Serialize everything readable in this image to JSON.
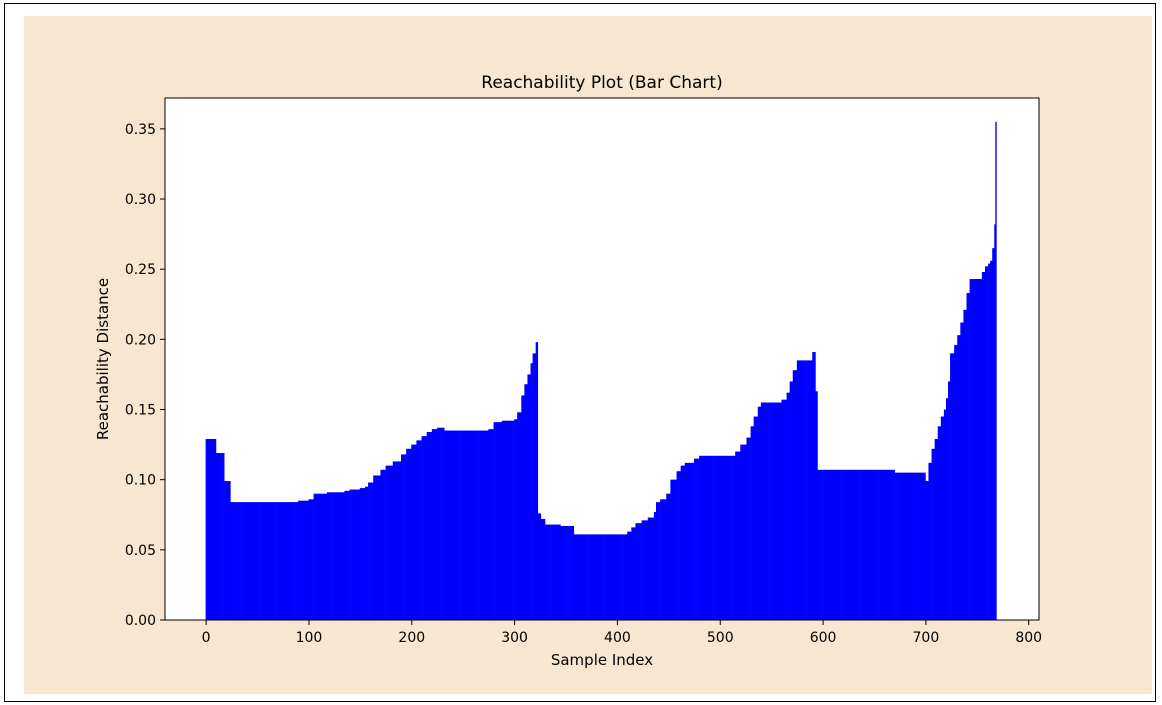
{
  "colors": {
    "figure_background": "#f8e6d0",
    "plot_background": "#ffffff",
    "bar": "#0000ff",
    "axis": "#000000"
  },
  "chart_data": {
    "type": "bar",
    "title": "Reachability Plot (Bar Chart)",
    "xlabel": "Sample Index",
    "ylabel": "Reachability Distance",
    "xlim": [
      -40,
      810
    ],
    "ylim": [
      0,
      0.372
    ],
    "xticks": [
      0,
      100,
      200,
      300,
      400,
      500,
      600,
      700,
      800
    ],
    "yticks": [
      0.0,
      0.05,
      0.1,
      0.15,
      0.2,
      0.25,
      0.3,
      0.35
    ],
    "xtick_labels": [
      "0",
      "100",
      "200",
      "300",
      "400",
      "500",
      "600",
      "700",
      "800"
    ],
    "ytick_labels": [
      "0.00",
      "0.05",
      "0.10",
      "0.15",
      "0.20",
      "0.25",
      "0.30",
      "0.35"
    ],
    "grid": false,
    "legend": false,
    "bar_count": 769,
    "steps": [
      [
        0,
        0.129
      ],
      [
        10,
        0.119
      ],
      [
        18,
        0.099
      ],
      [
        24,
        0.084
      ],
      [
        90,
        0.085
      ],
      [
        100,
        0.086
      ],
      [
        105,
        0.09
      ],
      [
        118,
        0.091
      ],
      [
        135,
        0.092
      ],
      [
        140,
        0.093
      ],
      [
        150,
        0.094
      ],
      [
        155,
        0.095
      ],
      [
        158,
        0.098
      ],
      [
        163,
        0.103
      ],
      [
        170,
        0.107
      ],
      [
        175,
        0.11
      ],
      [
        182,
        0.113
      ],
      [
        190,
        0.118
      ],
      [
        195,
        0.122
      ],
      [
        200,
        0.125
      ],
      [
        205,
        0.128
      ],
      [
        210,
        0.131
      ],
      [
        215,
        0.134
      ],
      [
        220,
        0.136
      ],
      [
        225,
        0.137
      ],
      [
        232,
        0.135
      ],
      [
        275,
        0.136
      ],
      [
        280,
        0.141
      ],
      [
        288,
        0.142
      ],
      [
        300,
        0.143
      ],
      [
        303,
        0.148
      ],
      [
        307,
        0.16
      ],
      [
        310,
        0.168
      ],
      [
        313,
        0.175
      ],
      [
        316,
        0.183
      ],
      [
        318,
        0.19
      ],
      [
        321,
        0.198
      ],
      [
        323,
        0.076
      ],
      [
        326,
        0.072
      ],
      [
        330,
        0.068
      ],
      [
        345,
        0.067
      ],
      [
        358,
        0.061
      ],
      [
        410,
        0.063
      ],
      [
        414,
        0.066
      ],
      [
        418,
        0.069
      ],
      [
        424,
        0.071
      ],
      [
        430,
        0.073
      ],
      [
        436,
        0.077
      ],
      [
        438,
        0.084
      ],
      [
        442,
        0.086
      ],
      [
        448,
        0.09
      ],
      [
        452,
        0.1
      ],
      [
        458,
        0.106
      ],
      [
        462,
        0.11
      ],
      [
        466,
        0.112
      ],
      [
        475,
        0.115
      ],
      [
        480,
        0.117
      ],
      [
        515,
        0.12
      ],
      [
        520,
        0.125
      ],
      [
        526,
        0.13
      ],
      [
        530,
        0.138
      ],
      [
        533,
        0.145
      ],
      [
        537,
        0.152
      ],
      [
        540,
        0.155
      ],
      [
        560,
        0.157
      ],
      [
        565,
        0.162
      ],
      [
        568,
        0.17
      ],
      [
        571,
        0.178
      ],
      [
        575,
        0.185
      ],
      [
        590,
        0.191
      ],
      [
        593,
        0.163
      ],
      [
        595,
        0.107
      ],
      [
        670,
        0.105
      ],
      [
        700,
        0.099
      ],
      [
        703,
        0.112
      ],
      [
        706,
        0.122
      ],
      [
        709,
        0.129
      ],
      [
        712,
        0.138
      ],
      [
        715,
        0.145
      ],
      [
        718,
        0.15
      ],
      [
        720,
        0.158
      ],
      [
        722,
        0.17
      ],
      [
        724,
        0.19
      ],
      [
        728,
        0.196
      ],
      [
        731,
        0.203
      ],
      [
        734,
        0.212
      ],
      [
        737,
        0.221
      ],
      [
        740,
        0.233
      ],
      [
        743,
        0.243
      ],
      [
        755,
        0.248
      ],
      [
        758,
        0.252
      ],
      [
        761,
        0.254
      ],
      [
        763,
        0.256
      ],
      [
        765,
        0.265
      ],
      [
        767,
        0.282
      ],
      [
        768,
        0.355
      ]
    ]
  }
}
